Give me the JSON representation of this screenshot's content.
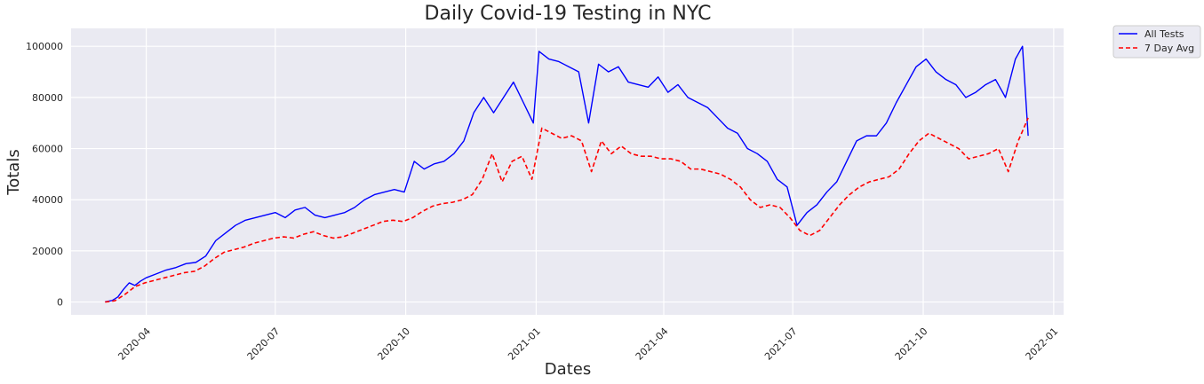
{
  "chart_data": {
    "type": "line",
    "title": "Daily Covid-19 Testing in NYC",
    "xlabel": "Dates",
    "ylabel": "Totals",
    "x_range": [
      "2020-02-08",
      "2022-01-08"
    ],
    "ylim": [
      -5000,
      107000
    ],
    "x_ticks": [
      "2020-04",
      "2020-07",
      "2020-10",
      "2021-01",
      "2021-04",
      "2021-07",
      "2021-10",
      "2022-01"
    ],
    "y_ticks": [
      "0",
      "20000",
      "40000",
      "60000",
      "80000",
      "100000"
    ],
    "grid": true,
    "legend_position": "outside-top-right",
    "background_color": "#eaeaf2",
    "series": [
      {
        "name": "All Tests",
        "color": "#0000ff",
        "style": "solid",
        "points": [
          [
            "2020-03-03",
            100
          ],
          [
            "2020-03-08",
            600
          ],
          [
            "2020-03-12",
            2000
          ],
          [
            "2020-03-16",
            5000
          ],
          [
            "2020-03-20",
            7500
          ],
          [
            "2020-03-24",
            6500
          ],
          [
            "2020-03-28",
            8200
          ],
          [
            "2020-04-01",
            9500
          ],
          [
            "2020-04-08",
            11000
          ],
          [
            "2020-04-15",
            12500
          ],
          [
            "2020-04-22",
            13500
          ],
          [
            "2020-04-29",
            15000
          ],
          [
            "2020-05-06",
            15500
          ],
          [
            "2020-05-13",
            18000
          ],
          [
            "2020-05-20",
            24000
          ],
          [
            "2020-05-27",
            27000
          ],
          [
            "2020-06-03",
            30000
          ],
          [
            "2020-06-10",
            32000
          ],
          [
            "2020-06-17",
            33000
          ],
          [
            "2020-06-24",
            34000
          ],
          [
            "2020-07-01",
            35000
          ],
          [
            "2020-07-08",
            33000
          ],
          [
            "2020-07-15",
            36000
          ],
          [
            "2020-07-22",
            37000
          ],
          [
            "2020-07-29",
            34000
          ],
          [
            "2020-08-05",
            33000
          ],
          [
            "2020-08-12",
            34000
          ],
          [
            "2020-08-19",
            35000
          ],
          [
            "2020-08-26",
            37000
          ],
          [
            "2020-09-02",
            40000
          ],
          [
            "2020-09-09",
            42000
          ],
          [
            "2020-09-16",
            43000
          ],
          [
            "2020-09-23",
            44000
          ],
          [
            "2020-09-30",
            43000
          ],
          [
            "2020-10-07",
            55000
          ],
          [
            "2020-10-14",
            52000
          ],
          [
            "2020-10-21",
            54000
          ],
          [
            "2020-10-28",
            55000
          ],
          [
            "2020-11-04",
            58000
          ],
          [
            "2020-11-11",
            63000
          ],
          [
            "2020-11-18",
            74000
          ],
          [
            "2020-11-25",
            80000
          ],
          [
            "2020-12-02",
            74000
          ],
          [
            "2020-12-09",
            80000
          ],
          [
            "2020-12-16",
            86000
          ],
          [
            "2020-12-23",
            78000
          ],
          [
            "2020-12-30",
            70000
          ],
          [
            "2021-01-03",
            98000
          ],
          [
            "2021-01-10",
            95000
          ],
          [
            "2021-01-17",
            94000
          ],
          [
            "2021-01-24",
            92000
          ],
          [
            "2021-01-31",
            90000
          ],
          [
            "2021-02-07",
            70000
          ],
          [
            "2021-02-14",
            93000
          ],
          [
            "2021-02-21",
            90000
          ],
          [
            "2021-02-28",
            92000
          ],
          [
            "2021-03-07",
            86000
          ],
          [
            "2021-03-14",
            85000
          ],
          [
            "2021-03-21",
            84000
          ],
          [
            "2021-03-28",
            88000
          ],
          [
            "2021-04-04",
            82000
          ],
          [
            "2021-04-11",
            85000
          ],
          [
            "2021-04-18",
            80000
          ],
          [
            "2021-04-25",
            78000
          ],
          [
            "2021-05-02",
            76000
          ],
          [
            "2021-05-09",
            72000
          ],
          [
            "2021-05-16",
            68000
          ],
          [
            "2021-05-23",
            66000
          ],
          [
            "2021-05-30",
            60000
          ],
          [
            "2021-06-06",
            58000
          ],
          [
            "2021-06-13",
            55000
          ],
          [
            "2021-06-20",
            48000
          ],
          [
            "2021-06-27",
            45000
          ],
          [
            "2021-07-04",
            30000
          ],
          [
            "2021-07-11",
            35000
          ],
          [
            "2021-07-18",
            38000
          ],
          [
            "2021-07-25",
            43000
          ],
          [
            "2021-08-01",
            47000
          ],
          [
            "2021-08-08",
            55000
          ],
          [
            "2021-08-15",
            63000
          ],
          [
            "2021-08-22",
            65000
          ],
          [
            "2021-08-29",
            65000
          ],
          [
            "2021-09-05",
            70000
          ],
          [
            "2021-09-12",
            78000
          ],
          [
            "2021-09-19",
            85000
          ],
          [
            "2021-09-26",
            92000
          ],
          [
            "2021-10-03",
            95000
          ],
          [
            "2021-10-10",
            90000
          ],
          [
            "2021-10-17",
            87000
          ],
          [
            "2021-10-24",
            85000
          ],
          [
            "2021-10-31",
            80000
          ],
          [
            "2021-11-07",
            82000
          ],
          [
            "2021-11-14",
            85000
          ],
          [
            "2021-11-21",
            87000
          ],
          [
            "2021-11-28",
            80000
          ],
          [
            "2021-12-05",
            95000
          ],
          [
            "2021-12-10",
            100000
          ],
          [
            "2021-12-14",
            65000
          ]
        ]
      },
      {
        "name": "7 Day Avg",
        "color": "#ff0000",
        "style": "dashed",
        "points": [
          [
            "2020-03-03",
            0
          ],
          [
            "2020-03-10",
            500
          ],
          [
            "2020-03-17",
            3000
          ],
          [
            "2020-03-24",
            6000
          ],
          [
            "2020-03-31",
            7500
          ],
          [
            "2020-04-07",
            8500
          ],
          [
            "2020-04-14",
            9500
          ],
          [
            "2020-04-21",
            10500
          ],
          [
            "2020-04-28",
            11500
          ],
          [
            "2020-05-05",
            12000
          ],
          [
            "2020-05-12",
            14000
          ],
          [
            "2020-05-19",
            17000
          ],
          [
            "2020-05-26",
            19500
          ],
          [
            "2020-06-02",
            20500
          ],
          [
            "2020-06-09",
            21500
          ],
          [
            "2020-06-16",
            23000
          ],
          [
            "2020-06-23",
            24000
          ],
          [
            "2020-06-30",
            25000
          ],
          [
            "2020-07-07",
            25500
          ],
          [
            "2020-07-14",
            25000
          ],
          [
            "2020-07-21",
            26500
          ],
          [
            "2020-07-28",
            27500
          ],
          [
            "2020-08-04",
            26000
          ],
          [
            "2020-08-11",
            25000
          ],
          [
            "2020-08-18",
            25500
          ],
          [
            "2020-08-25",
            27000
          ],
          [
            "2020-09-01",
            28500
          ],
          [
            "2020-09-08",
            30000
          ],
          [
            "2020-09-15",
            31500
          ],
          [
            "2020-09-22",
            32000
          ],
          [
            "2020-09-29",
            31500
          ],
          [
            "2020-10-06",
            33000
          ],
          [
            "2020-10-13",
            35500
          ],
          [
            "2020-10-20",
            37500
          ],
          [
            "2020-10-27",
            38500
          ],
          [
            "2020-11-03",
            39000
          ],
          [
            "2020-11-10",
            40000
          ],
          [
            "2020-11-17",
            42000
          ],
          [
            "2020-11-24",
            48000
          ],
          [
            "2020-12-01",
            58000
          ],
          [
            "2020-12-08",
            47000
          ],
          [
            "2020-12-15",
            55000
          ],
          [
            "2020-12-22",
            57000
          ],
          [
            "2020-12-29",
            48000
          ],
          [
            "2021-01-05",
            68000
          ],
          [
            "2021-01-12",
            66000
          ],
          [
            "2021-01-19",
            64000
          ],
          [
            "2021-01-26",
            65000
          ],
          [
            "2021-02-02",
            63000
          ],
          [
            "2021-02-09",
            51000
          ],
          [
            "2021-02-16",
            63000
          ],
          [
            "2021-02-23",
            58000
          ],
          [
            "2021-03-02",
            61000
          ],
          [
            "2021-03-09",
            58000
          ],
          [
            "2021-03-16",
            57000
          ],
          [
            "2021-03-23",
            57000
          ],
          [
            "2021-03-30",
            56000
          ],
          [
            "2021-04-06",
            56000
          ],
          [
            "2021-04-13",
            55000
          ],
          [
            "2021-04-20",
            52000
          ],
          [
            "2021-04-27",
            52000
          ],
          [
            "2021-05-04",
            51000
          ],
          [
            "2021-05-11",
            50000
          ],
          [
            "2021-05-18",
            48000
          ],
          [
            "2021-05-25",
            45000
          ],
          [
            "2021-06-01",
            40000
          ],
          [
            "2021-06-08",
            37000
          ],
          [
            "2021-06-15",
            38000
          ],
          [
            "2021-06-22",
            37000
          ],
          [
            "2021-06-29",
            33000
          ],
          [
            "2021-07-06",
            28000
          ],
          [
            "2021-07-13",
            26000
          ],
          [
            "2021-07-20",
            28000
          ],
          [
            "2021-07-27",
            33000
          ],
          [
            "2021-08-03",
            38000
          ],
          [
            "2021-08-10",
            42000
          ],
          [
            "2021-08-17",
            45000
          ],
          [
            "2021-08-24",
            47000
          ],
          [
            "2021-08-31",
            48000
          ],
          [
            "2021-09-07",
            49000
          ],
          [
            "2021-09-14",
            52000
          ],
          [
            "2021-09-21",
            58000
          ],
          [
            "2021-09-28",
            63000
          ],
          [
            "2021-10-05",
            66000
          ],
          [
            "2021-10-12",
            64000
          ],
          [
            "2021-10-19",
            62000
          ],
          [
            "2021-10-26",
            60000
          ],
          [
            "2021-11-02",
            56000
          ],
          [
            "2021-11-09",
            57000
          ],
          [
            "2021-11-16",
            58000
          ],
          [
            "2021-11-23",
            60000
          ],
          [
            "2021-11-30",
            51000
          ],
          [
            "2021-12-07",
            63000
          ],
          [
            "2021-12-14",
            72000
          ]
        ]
      }
    ]
  }
}
